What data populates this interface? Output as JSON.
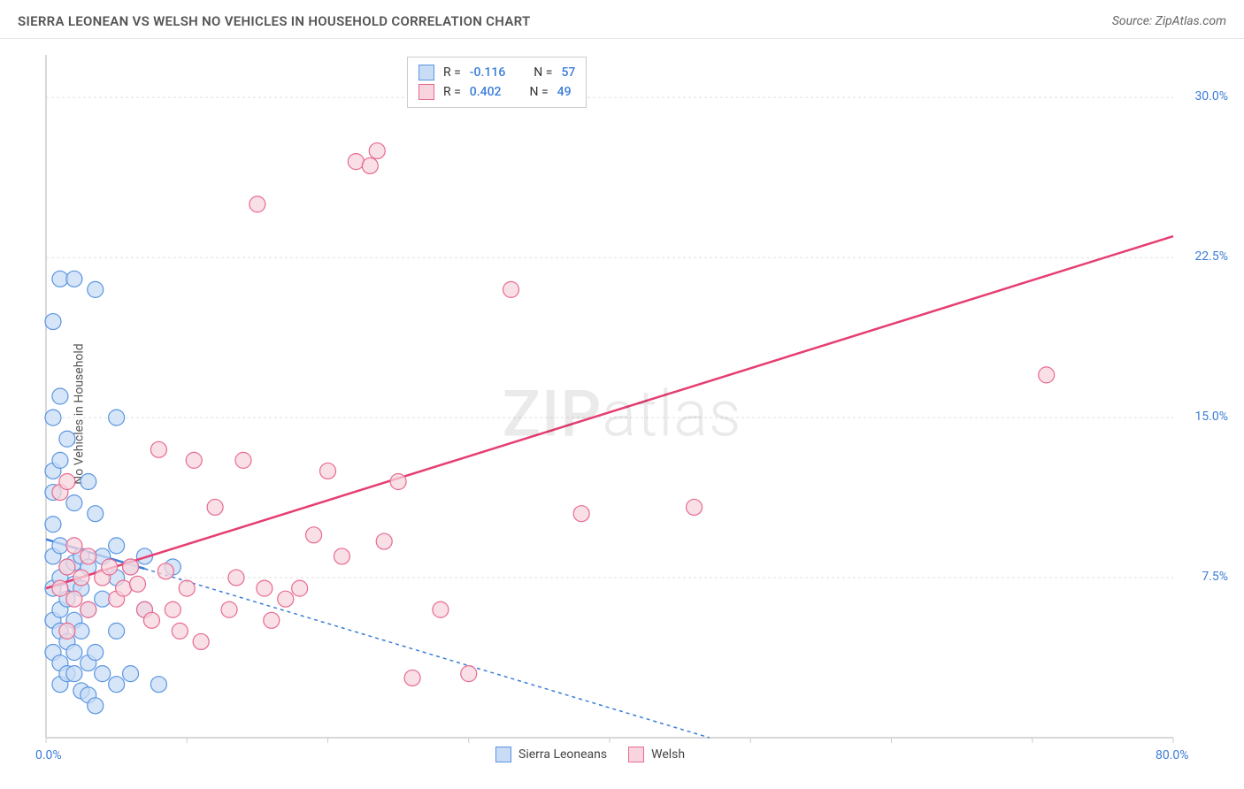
{
  "header": {
    "title": "SIERRA LEONEAN VS WELSH NO VEHICLES IN HOUSEHOLD CORRELATION CHART",
    "source": "Source: ZipAtlas.com"
  },
  "watermark": {
    "zip": "ZIP",
    "atlas": "atlas"
  },
  "chart": {
    "type": "scatter",
    "ylabel": "No Vehicles in Household",
    "xlim": [
      0,
      80
    ],
    "ylim": [
      0,
      32
    ],
    "x_tick_labels": {
      "min": "0.0%",
      "max": "80.0%"
    },
    "y_tick_labels": [
      "7.5%",
      "15.0%",
      "22.5%",
      "30.0%"
    ],
    "y_tick_values": [
      7.5,
      15.0,
      22.5,
      30.0
    ],
    "x_minor_ticks": [
      0,
      10,
      20,
      30,
      40,
      50,
      60,
      70,
      80
    ],
    "grid_color": "#e0e0e0",
    "axis_color": "#cccccc",
    "background_color": "#ffffff",
    "series": [
      {
        "name": "Sierra Leoneans",
        "fill": "#c8dcf5",
        "stroke": "#5a95e0",
        "line_color": "#3b7dd8",
        "line_dash": "4 4",
        "line_solid_until_x": 7,
        "regression": {
          "x1": 0,
          "y1": 9.3,
          "x2": 80,
          "y2": -6.5
        },
        "marker_r": 9,
        "points": [
          [
            0.5,
            19.5
          ],
          [
            0.5,
            15.0
          ],
          [
            0.5,
            12.5
          ],
          [
            0.5,
            11.5
          ],
          [
            0.5,
            10.0
          ],
          [
            0.5,
            8.5
          ],
          [
            0.5,
            7.0
          ],
          [
            0.5,
            5.5
          ],
          [
            0.5,
            4.0
          ],
          [
            1.0,
            21.5
          ],
          [
            1.0,
            16.0
          ],
          [
            1.0,
            13.0
          ],
          [
            1.0,
            9.0
          ],
          [
            1.0,
            7.5
          ],
          [
            1.0,
            6.0
          ],
          [
            1.0,
            5.0
          ],
          [
            1.0,
            3.5
          ],
          [
            1.0,
            2.5
          ],
          [
            1.5,
            14.0
          ],
          [
            1.5,
            8.0
          ],
          [
            1.5,
            6.5
          ],
          [
            1.5,
            4.5
          ],
          [
            1.5,
            3.0
          ],
          [
            2.0,
            21.5
          ],
          [
            2.0,
            11.0
          ],
          [
            2.0,
            8.2
          ],
          [
            2.0,
            7.2
          ],
          [
            2.0,
            5.5
          ],
          [
            2.0,
            4.0
          ],
          [
            2.0,
            3.0
          ],
          [
            2.5,
            8.5
          ],
          [
            2.5,
            7.0
          ],
          [
            2.5,
            5.0
          ],
          [
            2.5,
            2.2
          ],
          [
            3.0,
            12.0
          ],
          [
            3.0,
            8.0
          ],
          [
            3.0,
            6.0
          ],
          [
            3.0,
            3.5
          ],
          [
            3.0,
            2.0
          ],
          [
            3.5,
            21.0
          ],
          [
            3.5,
            10.5
          ],
          [
            3.5,
            4.0
          ],
          [
            3.5,
            1.5
          ],
          [
            4.0,
            8.5
          ],
          [
            4.0,
            6.5
          ],
          [
            4.0,
            3.0
          ],
          [
            5.0,
            15.0
          ],
          [
            5.0,
            9.0
          ],
          [
            5.0,
            7.5
          ],
          [
            5.0,
            5.0
          ],
          [
            5.0,
            2.5
          ],
          [
            6.0,
            8.0
          ],
          [
            6.0,
            3.0
          ],
          [
            7.0,
            8.5
          ],
          [
            7.0,
            6.0
          ],
          [
            8.0,
            2.5
          ],
          [
            9.0,
            8.0
          ]
        ]
      },
      {
        "name": "Welsh",
        "fill": "#f7d4de",
        "stroke": "#e86a8f",
        "line_color": "#e63e71",
        "line_dash": "none",
        "regression": {
          "x1": 0,
          "y1": 7.0,
          "x2": 80,
          "y2": 23.5
        },
        "marker_r": 9,
        "points": [
          [
            1.0,
            11.5
          ],
          [
            1.0,
            7.0
          ],
          [
            1.5,
            12.0
          ],
          [
            1.5,
            8.0
          ],
          [
            1.5,
            5.0
          ],
          [
            2.0,
            9.0
          ],
          [
            2.0,
            6.5
          ],
          [
            2.5,
            7.5
          ],
          [
            3.0,
            8.5
          ],
          [
            3.0,
            6.0
          ],
          [
            4.0,
            7.5
          ],
          [
            4.5,
            8.0
          ],
          [
            5.0,
            6.5
          ],
          [
            5.5,
            7.0
          ],
          [
            6.0,
            8.0
          ],
          [
            6.5,
            7.2
          ],
          [
            7.0,
            6.0
          ],
          [
            7.5,
            5.5
          ],
          [
            8.0,
            13.5
          ],
          [
            8.5,
            7.8
          ],
          [
            9.0,
            6.0
          ],
          [
            9.5,
            5.0
          ],
          [
            10.0,
            7.0
          ],
          [
            10.5,
            13.0
          ],
          [
            11.0,
            4.5
          ],
          [
            12.0,
            10.8
          ],
          [
            13.0,
            6.0
          ],
          [
            13.5,
            7.5
          ],
          [
            14.0,
            13.0
          ],
          [
            15.0,
            25.0
          ],
          [
            15.5,
            7.0
          ],
          [
            16.0,
            5.5
          ],
          [
            17.0,
            6.5
          ],
          [
            18.0,
            7.0
          ],
          [
            19.0,
            9.5
          ],
          [
            20.0,
            12.5
          ],
          [
            21.0,
            8.5
          ],
          [
            22.0,
            27.0
          ],
          [
            23.0,
            26.8
          ],
          [
            23.5,
            27.5
          ],
          [
            24.0,
            9.2
          ],
          [
            25.0,
            12.0
          ],
          [
            26.0,
            2.8
          ],
          [
            28.0,
            6.0
          ],
          [
            30.0,
            3.0
          ],
          [
            33.0,
            21.0
          ],
          [
            38.0,
            10.5
          ],
          [
            46.0,
            10.8
          ],
          [
            71.0,
            17.0
          ]
        ]
      }
    ],
    "stats": [
      {
        "series": 0,
        "R": "-0.116",
        "N": "57"
      },
      {
        "series": 1,
        "R": "0.402",
        "N": "49"
      }
    ],
    "legend": [
      {
        "label": "Sierra Leoneans",
        "fill": "#c8dcf5",
        "stroke": "#5a95e0"
      },
      {
        "label": "Welsh",
        "fill": "#f7d4de",
        "stroke": "#e86a8f"
      }
    ]
  },
  "labels": {
    "R": "R =",
    "N": "N ="
  }
}
